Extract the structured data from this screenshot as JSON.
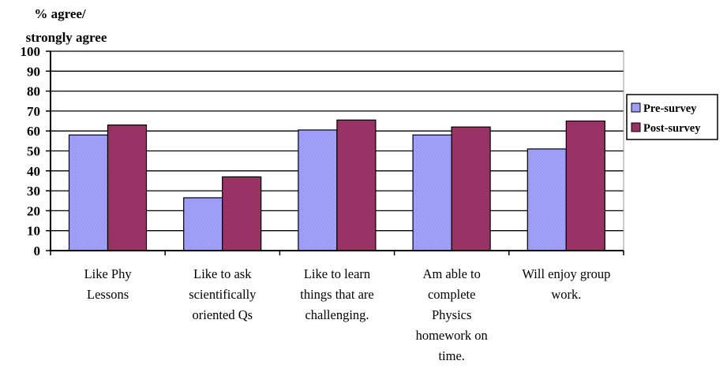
{
  "chart_data": {
    "type": "bar",
    "title": "",
    "ylabel": [
      "% agree/",
      "strongly agree"
    ],
    "xlabel": "",
    "ylim": [
      0,
      100
    ],
    "yticks": [
      0,
      10,
      20,
      30,
      40,
      50,
      60,
      70,
      80,
      90,
      100
    ],
    "grid": true,
    "legend_position": "right",
    "categories": [
      [
        "Like Phy",
        "Lessons"
      ],
      [
        "Like to ask",
        "scientifically",
        "oriented Qs"
      ],
      [
        "Like to learn",
        "things that are",
        "challenging."
      ],
      [
        "Am able to",
        "complete",
        "Physics",
        "homework on",
        "time."
      ],
      [
        "Will enjoy group",
        "work."
      ]
    ],
    "series": [
      {
        "name": "Pre-survey",
        "color": "#9999ff",
        "values": [
          58,
          26.5,
          60.5,
          58,
          51
        ]
      },
      {
        "name": "Post-survey",
        "color": "#993366",
        "values": [
          63,
          37,
          65.5,
          62,
          65
        ]
      }
    ]
  }
}
